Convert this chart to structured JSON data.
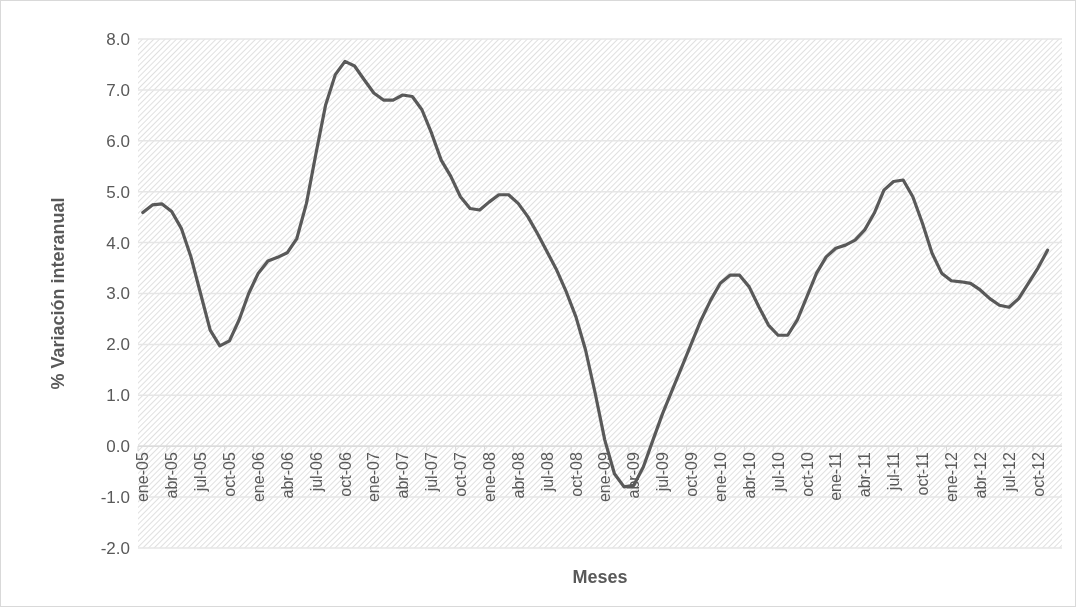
{
  "chart_data": {
    "type": "line",
    "xlabel": "Meses",
    "ylabel": "% Variación interanual",
    "categories": [
      "ene-05",
      null,
      null,
      "abr-05",
      null,
      null,
      "jul-05",
      null,
      null,
      "oct-05",
      null,
      null,
      "ene-06",
      null,
      null,
      "abr-06",
      null,
      null,
      "jul-06",
      null,
      null,
      "oct-06",
      null,
      null,
      "ene-07",
      null,
      null,
      "abr-07",
      null,
      null,
      "jul-07",
      null,
      null,
      "oct-07",
      null,
      null,
      "ene-08",
      null,
      null,
      "abr-08",
      null,
      null,
      "jul-08",
      null,
      null,
      "oct-08",
      null,
      null,
      "ene-09",
      null,
      null,
      "abr-09",
      null,
      null,
      "jul-09",
      null,
      null,
      "oct-09",
      null,
      null,
      "ene-10",
      null,
      null,
      "abr-10",
      null,
      null,
      "jul-10",
      null,
      null,
      "oct-10",
      null,
      null,
      "ene-11",
      null,
      null,
      "abr-11",
      null,
      null,
      "jul-11",
      null,
      null,
      "oct-11",
      null,
      null,
      "ene-12",
      null,
      null,
      "abr-12",
      null,
      null,
      "jul-12",
      null,
      null,
      "oct-12",
      null,
      null
    ],
    "series": [
      {
        "color": "#595959",
        "values": [
          4.59,
          4.74,
          4.76,
          4.61,
          4.28,
          3.72,
          3.0,
          2.28,
          1.97,
          2.07,
          2.48,
          3.0,
          3.4,
          3.64,
          3.71,
          3.8,
          4.08,
          4.77,
          5.76,
          6.71,
          7.3,
          7.56,
          7.47,
          7.2,
          6.94,
          6.8,
          6.8,
          6.9,
          6.87,
          6.61,
          6.15,
          5.62,
          5.3,
          4.9,
          4.67,
          4.64,
          4.8,
          4.94,
          4.94,
          4.77,
          4.51,
          4.18,
          3.82,
          3.46,
          3.03,
          2.54,
          1.89,
          1.04,
          0.12,
          -0.54,
          -0.8,
          -0.77,
          -0.41,
          0.12,
          0.64,
          1.1,
          1.56,
          2.02,
          2.48,
          2.87,
          3.2,
          3.36,
          3.36,
          3.13,
          2.74,
          2.38,
          2.18,
          2.18,
          2.48,
          2.94,
          3.4,
          3.72,
          3.89,
          3.95,
          4.05,
          4.25,
          4.58,
          5.03,
          5.2,
          5.23,
          4.9,
          4.38,
          3.79,
          3.4,
          3.25,
          3.23,
          3.2,
          3.07,
          2.9,
          2.77,
          2.73,
          2.9,
          3.2,
          3.5,
          3.85,
          null
        ]
      }
    ],
    "ylim": [
      -2,
      8
    ],
    "yticks": [
      {
        "value": -2,
        "label": "-2.0"
      },
      {
        "value": -1,
        "label": "-1.0"
      },
      {
        "value": 0,
        "label": "0.0"
      },
      {
        "value": 1,
        "label": "1.0"
      },
      {
        "value": 2,
        "label": "2.0"
      },
      {
        "value": 3,
        "label": "3.0"
      },
      {
        "value": 4,
        "label": "4.0"
      },
      {
        "value": 5,
        "label": "5.0"
      },
      {
        "value": 6,
        "label": "6.0"
      },
      {
        "value": 7,
        "label": "7.0"
      },
      {
        "value": 8,
        "label": "8.0"
      }
    ],
    "grid": "y",
    "marker": "none",
    "line_style": "solid"
  }
}
